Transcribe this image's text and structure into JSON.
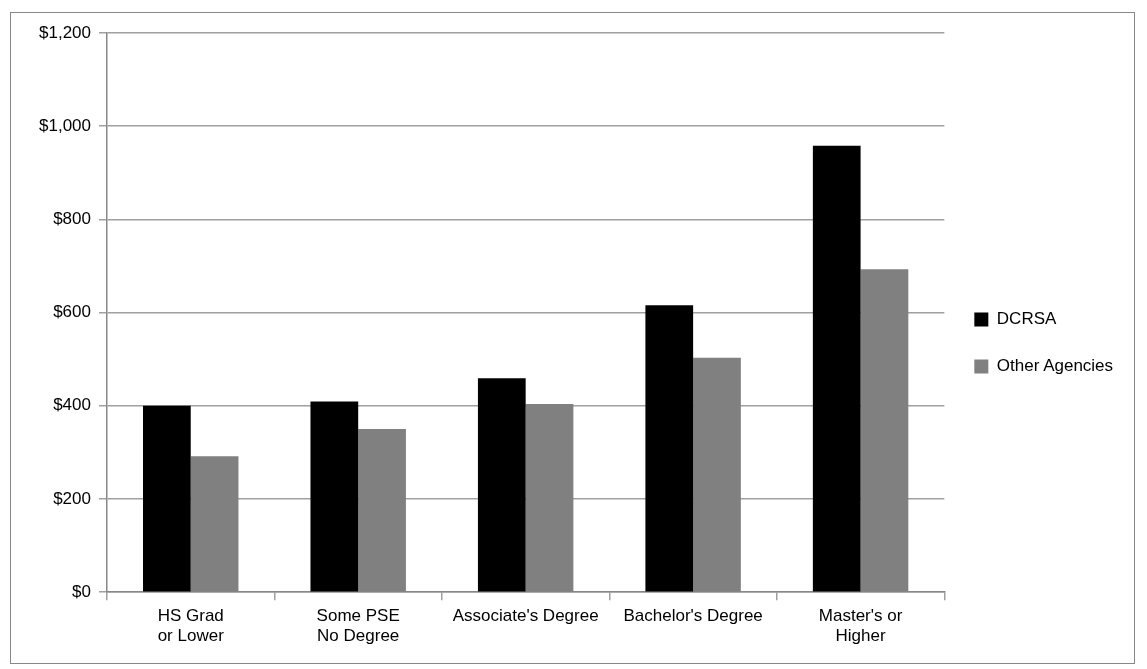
{
  "chart_data": {
    "type": "bar",
    "categories": [
      "HS Grad or Lower",
      "Some PSE No Degree",
      "Associate's Degree",
      "Bachelor's Degree",
      "Master's or Higher"
    ],
    "series": [
      {
        "name": "DCRSA",
        "color": "#000000",
        "values": [
          400,
          409,
          459,
          616,
          958
        ]
      },
      {
        "name": "Other Agencies",
        "color": "#808080",
        "values": [
          292,
          350,
          404,
          503,
          693
        ]
      }
    ],
    "ylim": [
      0,
      1200
    ],
    "yticks": [
      {
        "value": 0,
        "label": "$0"
      },
      {
        "value": 200,
        "label": "$200"
      },
      {
        "value": 400,
        "label": "$400"
      },
      {
        "value": 600,
        "label": "$600"
      },
      {
        "value": 800,
        "label": "$800"
      },
      {
        "value": 1000,
        "label": "$1,000"
      },
      {
        "value": 1200,
        "label": "$1,200"
      }
    ],
    "grid": "y",
    "legend": "right"
  }
}
